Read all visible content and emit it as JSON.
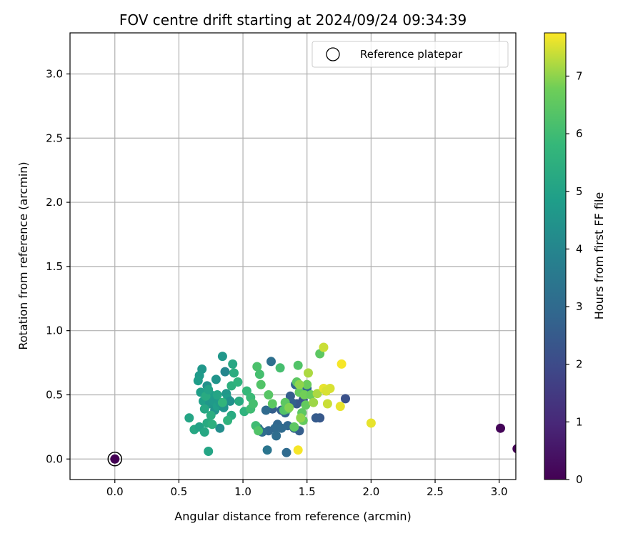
{
  "chart_data": {
    "type": "scatter",
    "title": "FOV centre drift starting at 2024/09/24 09:34:39",
    "xlabel": "Angular distance from reference (arcmin)",
    "ylabel": "Rotation from reference (arcmin)",
    "xlim": [
      -0.35,
      3.13
    ],
    "ylim": [
      -0.16,
      3.32
    ],
    "xticks": [
      0.0,
      0.5,
      1.0,
      1.5,
      2.0,
      2.5,
      3.0
    ],
    "xtick_labels": [
      "0.0",
      "0.5",
      "1.0",
      "1.5",
      "2.0",
      "2.5",
      "3.0"
    ],
    "yticks": [
      0.0,
      0.5,
      1.0,
      1.5,
      2.0,
      2.5,
      3.0
    ],
    "ytick_labels": [
      "0.0",
      "0.5",
      "1.0",
      "1.5",
      "2.0",
      "2.5",
      "3.0"
    ],
    "grid": true,
    "colormap": "viridis",
    "colorbar": {
      "label": "Hours from first FF file",
      "range": [
        0,
        7.75
      ],
      "ticks": [
        0,
        1,
        2,
        3,
        4,
        5,
        6,
        7
      ],
      "tick_labels": [
        "0",
        "1",
        "2",
        "3",
        "4",
        "5",
        "6",
        "7"
      ]
    },
    "legend": {
      "position": "top-right",
      "entries": [
        {
          "label": "Reference platepar",
          "marker": "hollow-circle"
        }
      ]
    },
    "reference": {
      "x": 0.0,
      "y": 0.0
    },
    "points": [
      [
        0.0,
        0.0,
        0.0
      ],
      [
        3.01,
        0.24,
        0.1
      ],
      [
        3.14,
        0.08,
        0.05
      ],
      [
        1.8,
        0.47,
        2.2
      ],
      [
        1.6,
        0.32,
        2.4
      ],
      [
        1.57,
        0.32,
        2.5
      ],
      [
        1.47,
        0.46,
        2.3
      ],
      [
        1.44,
        0.22,
        2.6
      ],
      [
        1.42,
        0.43,
        2.4
      ],
      [
        1.37,
        0.49,
        2.6
      ],
      [
        1.33,
        0.36,
        2.8
      ],
      [
        1.3,
        0.38,
        2.7
      ],
      [
        1.27,
        0.27,
        2.9
      ],
      [
        1.25,
        0.24,
        3.0
      ],
      [
        1.23,
        0.39,
        2.6
      ],
      [
        1.2,
        0.22,
        2.9
      ],
      [
        1.18,
        0.38,
        3.0
      ],
      [
        1.15,
        0.21,
        3.1
      ],
      [
        1.12,
        0.24,
        3.2
      ],
      [
        1.26,
        0.18,
        3.1
      ],
      [
        1.19,
        0.07,
        3.4
      ],
      [
        1.34,
        0.05,
        3.0
      ],
      [
        1.35,
        0.26,
        2.9
      ],
      [
        1.22,
        0.76,
        3.2
      ],
      [
        1.5,
        0.55,
        2.9
      ],
      [
        1.41,
        0.58,
        2.8
      ],
      [
        1.38,
        0.44,
        2.7
      ],
      [
        1.3,
        0.24,
        3.0
      ],
      [
        1.4,
        0.24,
        2.8
      ],
      [
        0.84,
        0.8,
        4.6
      ],
      [
        0.86,
        0.68,
        4.0
      ],
      [
        0.79,
        0.62,
        4.5
      ],
      [
        0.68,
        0.7,
        4.6
      ],
      [
        0.66,
        0.65,
        4.7
      ],
      [
        0.65,
        0.61,
        4.8
      ],
      [
        0.67,
        0.52,
        4.9
      ],
      [
        0.69,
        0.45,
        4.9
      ],
      [
        0.72,
        0.57,
        4.4
      ],
      [
        0.74,
        0.43,
        4.6
      ],
      [
        0.75,
        0.5,
        4.8
      ],
      [
        0.77,
        0.45,
        4.7
      ],
      [
        0.78,
        0.38,
        4.5
      ],
      [
        0.8,
        0.41,
        4.9
      ],
      [
        0.82,
        0.44,
        4.7
      ],
      [
        0.82,
        0.24,
        4.3
      ],
      [
        0.85,
        0.4,
        4.5
      ],
      [
        0.87,
        0.51,
        4.6
      ],
      [
        0.88,
        0.47,
        4.8
      ],
      [
        0.9,
        0.45,
        4.4
      ],
      [
        0.58,
        0.32,
        5.1
      ],
      [
        0.62,
        0.23,
        5.2
      ],
      [
        0.66,
        0.25,
        5.0
      ],
      [
        0.7,
        0.21,
        5.2
      ],
      [
        0.72,
        0.28,
        5.3
      ],
      [
        0.73,
        0.06,
        5.1
      ],
      [
        0.75,
        0.34,
        5.4
      ],
      [
        0.76,
        0.27,
        5.5
      ],
      [
        0.7,
        0.39,
        5.2
      ],
      [
        0.71,
        0.49,
        5.3
      ],
      [
        0.73,
        0.54,
        5.0
      ],
      [
        0.8,
        0.5,
        5.1
      ],
      [
        0.92,
        0.74,
        5.2
      ],
      [
        0.93,
        0.67,
        5.4
      ],
      [
        0.91,
        0.57,
        5.5
      ],
      [
        0.96,
        0.6,
        5.6
      ],
      [
        0.97,
        0.45,
        5.3
      ],
      [
        0.91,
        0.34,
        5.3
      ],
      [
        0.88,
        0.3,
        5.6
      ],
      [
        0.84,
        0.44,
        5.7
      ],
      [
        1.01,
        0.37,
        5.6
      ],
      [
        1.03,
        0.53,
        5.8
      ],
      [
        1.06,
        0.48,
        5.9
      ],
      [
        1.06,
        0.39,
        6.0
      ],
      [
        1.1,
        0.26,
        6.0
      ],
      [
        1.08,
        0.43,
        6.1
      ],
      [
        1.11,
        0.72,
        6.2
      ],
      [
        1.13,
        0.66,
        6.1
      ],
      [
        1.14,
        0.58,
        6.3
      ],
      [
        1.12,
        0.22,
        6.3
      ],
      [
        1.2,
        0.5,
        6.4
      ],
      [
        1.29,
        0.71,
        6.1
      ],
      [
        1.23,
        0.43,
        6.5
      ],
      [
        1.32,
        0.38,
        6.3
      ],
      [
        1.33,
        0.44,
        6.5
      ],
      [
        1.35,
        0.39,
        6.4
      ],
      [
        1.4,
        0.25,
        6.5
      ],
      [
        1.43,
        0.73,
        6.3
      ],
      [
        1.42,
        0.6,
        6.5
      ],
      [
        1.44,
        0.52,
        6.6
      ],
      [
        1.46,
        0.36,
        6.5
      ],
      [
        1.47,
        0.3,
        6.6
      ],
      [
        1.49,
        0.42,
        6.6
      ],
      [
        1.5,
        0.58,
        6.7
      ],
      [
        1.48,
        0.5,
        6.8
      ],
      [
        1.53,
        0.5,
        6.7
      ],
      [
        1.6,
        0.82,
        6.5
      ],
      [
        1.36,
        0.4,
        6.9
      ],
      [
        1.44,
        0.58,
        7.0
      ],
      [
        1.45,
        0.32,
        7.0
      ],
      [
        1.55,
        0.44,
        7.1
      ],
      [
        1.51,
        0.67,
        7.2
      ],
      [
        1.58,
        0.51,
        7.2
      ],
      [
        1.63,
        0.87,
        7.4
      ],
      [
        1.63,
        0.55,
        7.6
      ],
      [
        1.65,
        0.53,
        7.5
      ],
      [
        1.66,
        0.43,
        7.4
      ],
      [
        1.68,
        0.55,
        7.5
      ],
      [
        1.76,
        0.41,
        7.6
      ],
      [
        1.77,
        0.74,
        7.7
      ],
      [
        2.0,
        0.28,
        7.6
      ],
      [
        1.43,
        0.07,
        7.7
      ]
    ]
  }
}
